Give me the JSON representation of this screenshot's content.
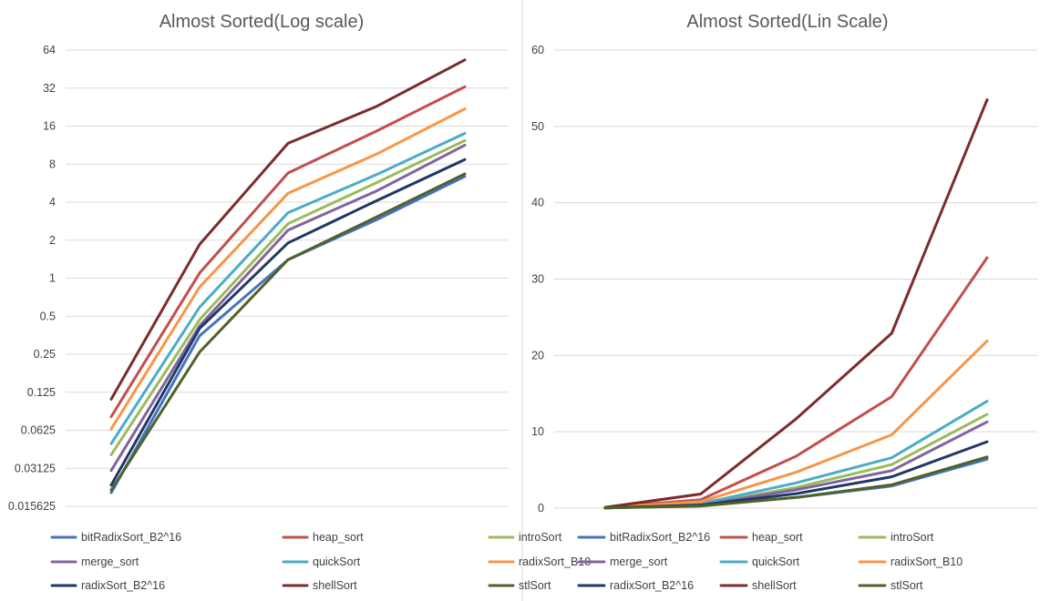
{
  "chart_data": [
    {
      "type": "line",
      "title": "Almost Sorted(Log scale)",
      "xlabel": "",
      "ylabel": "",
      "y_scale": "log2",
      "ylim": [
        0.015625,
        64
      ],
      "y_ticks": [
        0.015625,
        0.03125,
        0.0625,
        0.125,
        0.25,
        0.5,
        1,
        2,
        4,
        8,
        16,
        32,
        64
      ],
      "y_tick_labels": [
        "0.015625",
        "0.03125",
        "0.0625",
        "0.125",
        "0.25",
        "0.5",
        "1",
        "2",
        "4",
        "8",
        "16",
        "32",
        "64"
      ],
      "grid": true,
      "legend_position": "bottom",
      "x": [
        1,
        2,
        3,
        4,
        5
      ],
      "series": [
        {
          "name": "bitRadixSort_B2^16",
          "color": "#4472c4",
          "values": [
            0.02,
            0.35,
            1.4,
            2.9,
            6.4
          ]
        },
        {
          "name": "heap_sort",
          "color": "#c0504d",
          "values": [
            0.08,
            1.1,
            6.8,
            14.6,
            32.8
          ]
        },
        {
          "name": "introSort",
          "color": "#9bbb59",
          "values": [
            0.04,
            0.47,
            2.7,
            5.7,
            12.3
          ]
        },
        {
          "name": "merge_sort",
          "color": "#8064a2",
          "values": [
            0.03,
            0.42,
            2.4,
            4.9,
            11.3
          ]
        },
        {
          "name": "quickSort",
          "color": "#4bacc6",
          "values": [
            0.049,
            0.59,
            3.3,
            6.6,
            14.0
          ]
        },
        {
          "name": "radixSort_B10",
          "color": "#f79646",
          "values": [
            0.064,
            0.85,
            4.7,
            9.6,
            21.9
          ]
        },
        {
          "name": "radixSort_B2^16",
          "color": "#1f3864",
          "values": [
            0.023,
            0.4,
            1.9,
            4.1,
            8.7
          ]
        },
        {
          "name": "shellSort",
          "color": "#7b2c2c",
          "values": [
            0.11,
            1.85,
            11.7,
            22.9,
            53.5
          ]
        },
        {
          "name": "stlSort",
          "color": "#4f6228",
          "values": [
            0.021,
            0.26,
            1.4,
            3.05,
            6.7
          ]
        }
      ]
    },
    {
      "type": "line",
      "title": "Almost Sorted(Lin Scale)",
      "xlabel": "",
      "ylabel": "",
      "y_scale": "linear",
      "ylim": [
        0,
        60
      ],
      "y_ticks": [
        0,
        10,
        20,
        30,
        40,
        50,
        60
      ],
      "y_tick_labels": [
        "0",
        "10",
        "20",
        "30",
        "40",
        "50",
        "60"
      ],
      "grid": true,
      "legend_position": "bottom",
      "x": [
        1,
        2,
        3,
        4,
        5
      ],
      "series": [
        {
          "name": "bitRadixSort_B2^16",
          "color": "#4472c4",
          "values": [
            0.02,
            0.35,
            1.4,
            2.9,
            6.4
          ]
        },
        {
          "name": "heap_sort",
          "color": "#c0504d",
          "values": [
            0.08,
            1.1,
            6.8,
            14.6,
            32.8
          ]
        },
        {
          "name": "introSort",
          "color": "#9bbb59",
          "values": [
            0.04,
            0.47,
            2.7,
            5.7,
            12.3
          ]
        },
        {
          "name": "merge_sort",
          "color": "#8064a2",
          "values": [
            0.03,
            0.42,
            2.4,
            4.9,
            11.3
          ]
        },
        {
          "name": "quickSort",
          "color": "#4bacc6",
          "values": [
            0.049,
            0.59,
            3.3,
            6.6,
            14.0
          ]
        },
        {
          "name": "radixSort_B10",
          "color": "#f79646",
          "values": [
            0.064,
            0.85,
            4.7,
            9.6,
            21.9
          ]
        },
        {
          "name": "radixSort_B2^16",
          "color": "#1f3864",
          "values": [
            0.023,
            0.4,
            1.9,
            4.1,
            8.7
          ]
        },
        {
          "name": "shellSort",
          "color": "#7b2c2c",
          "values": [
            0.11,
            1.85,
            11.7,
            22.9,
            53.5
          ]
        },
        {
          "name": "stlSort",
          "color": "#4f6228",
          "values": [
            0.021,
            0.26,
            1.4,
            3.05,
            6.7
          ]
        }
      ]
    }
  ]
}
